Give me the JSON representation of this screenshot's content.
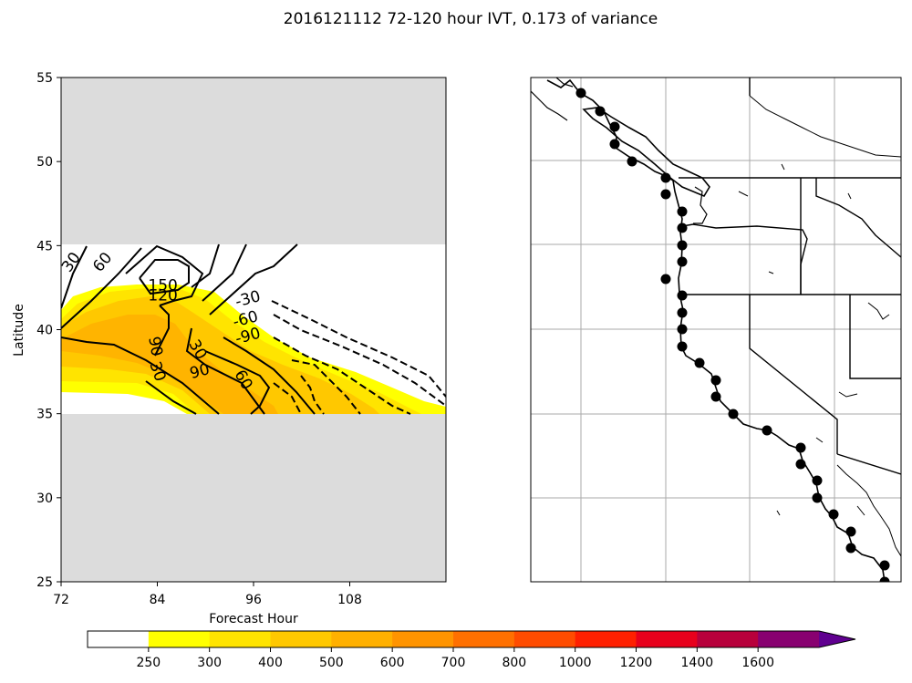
{
  "title": "2016121112 72-120 hour IVT, 0.173 of variance",
  "chart_data": [
    {
      "type": "contour",
      "xlabel": "Forecast Hour",
      "ylabel": "Latitude",
      "xlim": [
        72,
        120
      ],
      "ylim": [
        25,
        55
      ],
      "xticks": [
        "72",
        "84",
        "96",
        "108"
      ],
      "yticks": [
        "25",
        "30",
        "35",
        "40",
        "45",
        "50",
        "55"
      ],
      "valid_lat_range": [
        35,
        45
      ],
      "missing_color": "#dcdcdc",
      "filled_levels": [
        250,
        300,
        400,
        500
      ],
      "contour_labels": [
        {
          "text": "30",
          "x": 73.3,
          "y": 44.0,
          "rot": -55
        },
        {
          "text": "60",
          "x": 77.2,
          "y": 44.0,
          "rot": -50
        },
        {
          "text": "150",
          "x": 84.7,
          "y": 42.6,
          "rot": 0
        },
        {
          "text": "120",
          "x": 84.7,
          "y": 42.0,
          "rot": 0
        },
        {
          "text": "-30",
          "x": 95.3,
          "y": 41.8,
          "rot": -15
        },
        {
          "text": "-60",
          "x": 95.0,
          "y": 40.6,
          "rot": -15
        },
        {
          "text": "-90",
          "x": 95.3,
          "y": 39.6,
          "rot": -15
        },
        {
          "text": "90",
          "x": 83.7,
          "y": 39.0,
          "rot": 80
        },
        {
          "text": "30",
          "x": 84.0,
          "y": 37.5,
          "rot": 70
        },
        {
          "text": "30",
          "x": 89.0,
          "y": 38.8,
          "rot": 60
        },
        {
          "text": "90",
          "x": 89.3,
          "y": 37.5,
          "rot": -15
        },
        {
          "text": "60",
          "x": 94.7,
          "y": 37.0,
          "rot": 60
        }
      ]
    },
    {
      "type": "map",
      "region": "US West Coast",
      "markers": 30,
      "marker_color": "#000000"
    }
  ],
  "colorbar": {
    "ticks": [
      "250",
      "300",
      "400",
      "500",
      "600",
      "700",
      "800",
      "1000",
      "1200",
      "1400",
      "1600"
    ],
    "colors": [
      "#ffffff",
      "#ffff00",
      "#ffe400",
      "#ffc800",
      "#ffb000",
      "#ff9400",
      "#ff7000",
      "#ff4c00",
      "#ff2000",
      "#e8001c",
      "#b8003c",
      "#880070",
      "#600090"
    ]
  }
}
